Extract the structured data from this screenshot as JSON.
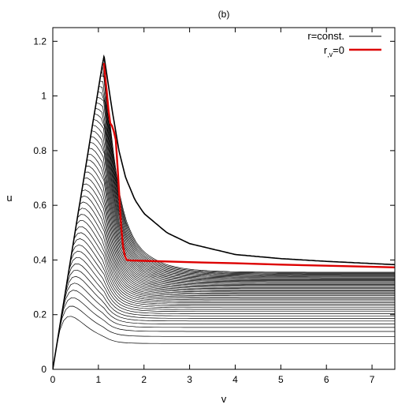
{
  "chart_data": {
    "type": "line",
    "title": "(b)",
    "xlabel": "v",
    "ylabel": "u",
    "xlim": [
      0,
      7.5
    ],
    "ylim": [
      0,
      1.25
    ],
    "x_ticks": [
      "0",
      "1",
      "2",
      "3",
      "4",
      "5",
      "6",
      "7"
    ],
    "y_ticks": [
      "0",
      "0.2",
      "0.4",
      "0.6",
      "0.8",
      "1",
      "1.2"
    ],
    "grid": false,
    "legend_position": "top-right",
    "series": [
      {
        "name": "r=const.",
        "color": "#000000",
        "style": "family of curves",
        "curve_count": 44,
        "envelope": {
          "v": [
            0,
            1.12,
            1.3,
            1.45,
            1.6,
            1.8,
            2.0,
            2.5,
            3.0,
            3.5,
            4.0,
            5.0,
            6.0,
            7.0,
            7.5
          ],
          "u": [
            0,
            1.15,
            0.95,
            0.8,
            0.7,
            0.62,
            0.57,
            0.5,
            0.46,
            0.44,
            0.42,
            0.405,
            0.395,
            0.387,
            0.383
          ]
        },
        "asymptote_u": 0.355
      },
      {
        "name": "r,v=0",
        "color": "#dd0000",
        "v": [
          1.12,
          1.18,
          1.22,
          1.26,
          1.3,
          1.34,
          1.38,
          1.42,
          1.46,
          1.5,
          1.54,
          1.58,
          1.62,
          1.7,
          2.0,
          3.0,
          4.0,
          5.0,
          6.0,
          7.0,
          7.5
        ],
        "u": [
          1.12,
          1.02,
          0.95,
          0.9,
          0.89,
          0.87,
          0.84,
          0.74,
          0.63,
          0.52,
          0.45,
          0.415,
          0.4,
          0.398,
          0.397,
          0.392,
          0.388,
          0.383,
          0.379,
          0.375,
          0.373
        ]
      }
    ]
  }
}
